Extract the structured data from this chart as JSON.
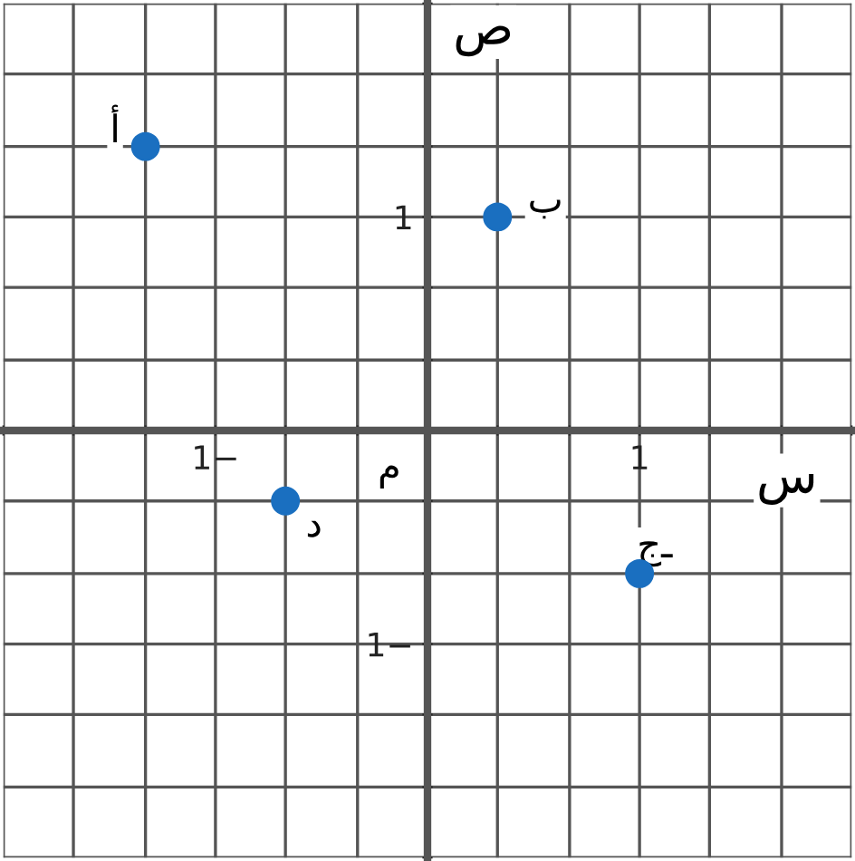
{
  "chart_data": {
    "type": "scatter",
    "xlabel": "س",
    "ylabel": "ص",
    "x": [
      -1.33,
      0.33,
      1,
      -0.67
    ],
    "values": [
      1.33,
      1,
      -0.67,
      -0.33
    ],
    "color": "#1a6fc0",
    "marker": "circle",
    "grid": true,
    "xlim": [
      -2,
      2
    ],
    "ylim": [
      -2,
      2
    ],
    "xticks": [
      {
        "value": -2,
        "label": null
      },
      {
        "value": -1.67,
        "label": null
      },
      {
        "value": -1.33,
        "label": null
      },
      {
        "value": -1,
        "label": "1−"
      },
      {
        "value": -0.67,
        "label": null
      },
      {
        "value": -0.33,
        "label": null
      },
      {
        "value": 0.33,
        "label": null
      },
      {
        "value": 0.67,
        "label": null
      },
      {
        "value": 1,
        "label": "1"
      },
      {
        "value": 1.33,
        "label": null
      },
      {
        "value": 1.67,
        "label": null
      },
      {
        "value": 2,
        "label": null
      }
    ],
    "yticks": [
      {
        "value": -2,
        "label": null
      },
      {
        "value": -1.67,
        "label": null
      },
      {
        "value": -1.33,
        "label": null
      },
      {
        "value": -1,
        "label": "1−"
      },
      {
        "value": -0.67,
        "label": null
      },
      {
        "value": -0.33,
        "label": null
      },
      {
        "value": 0.33,
        "label": null
      },
      {
        "value": 0.67,
        "label": null
      },
      {
        "value": 1,
        "label": "1"
      },
      {
        "value": 1.33,
        "label": null
      },
      {
        "value": 1.67,
        "label": null
      },
      {
        "value": 2,
        "label": null
      }
    ],
    "annotations": [
      {
        "text": "أ",
        "x": -1.33,
        "y": 1.33
      },
      {
        "text": "ب",
        "x": 0.33,
        "y": 1
      },
      {
        "text": "جـ",
        "x": 1,
        "y": -0.67
      },
      {
        "text": "د",
        "x": -0.67,
        "y": -0.33
      },
      "م"
    ]
  }
}
